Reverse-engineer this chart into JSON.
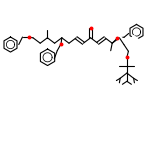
{
  "background": "#ffffff",
  "line_color": "#000000",
  "oxygen_color": "#ff0000",
  "line_width": 0.8,
  "figsize": [
    1.5,
    1.5
  ],
  "dpi": 100,
  "xlim": [
    0,
    100
  ],
  "ylim": [
    0,
    100
  ]
}
